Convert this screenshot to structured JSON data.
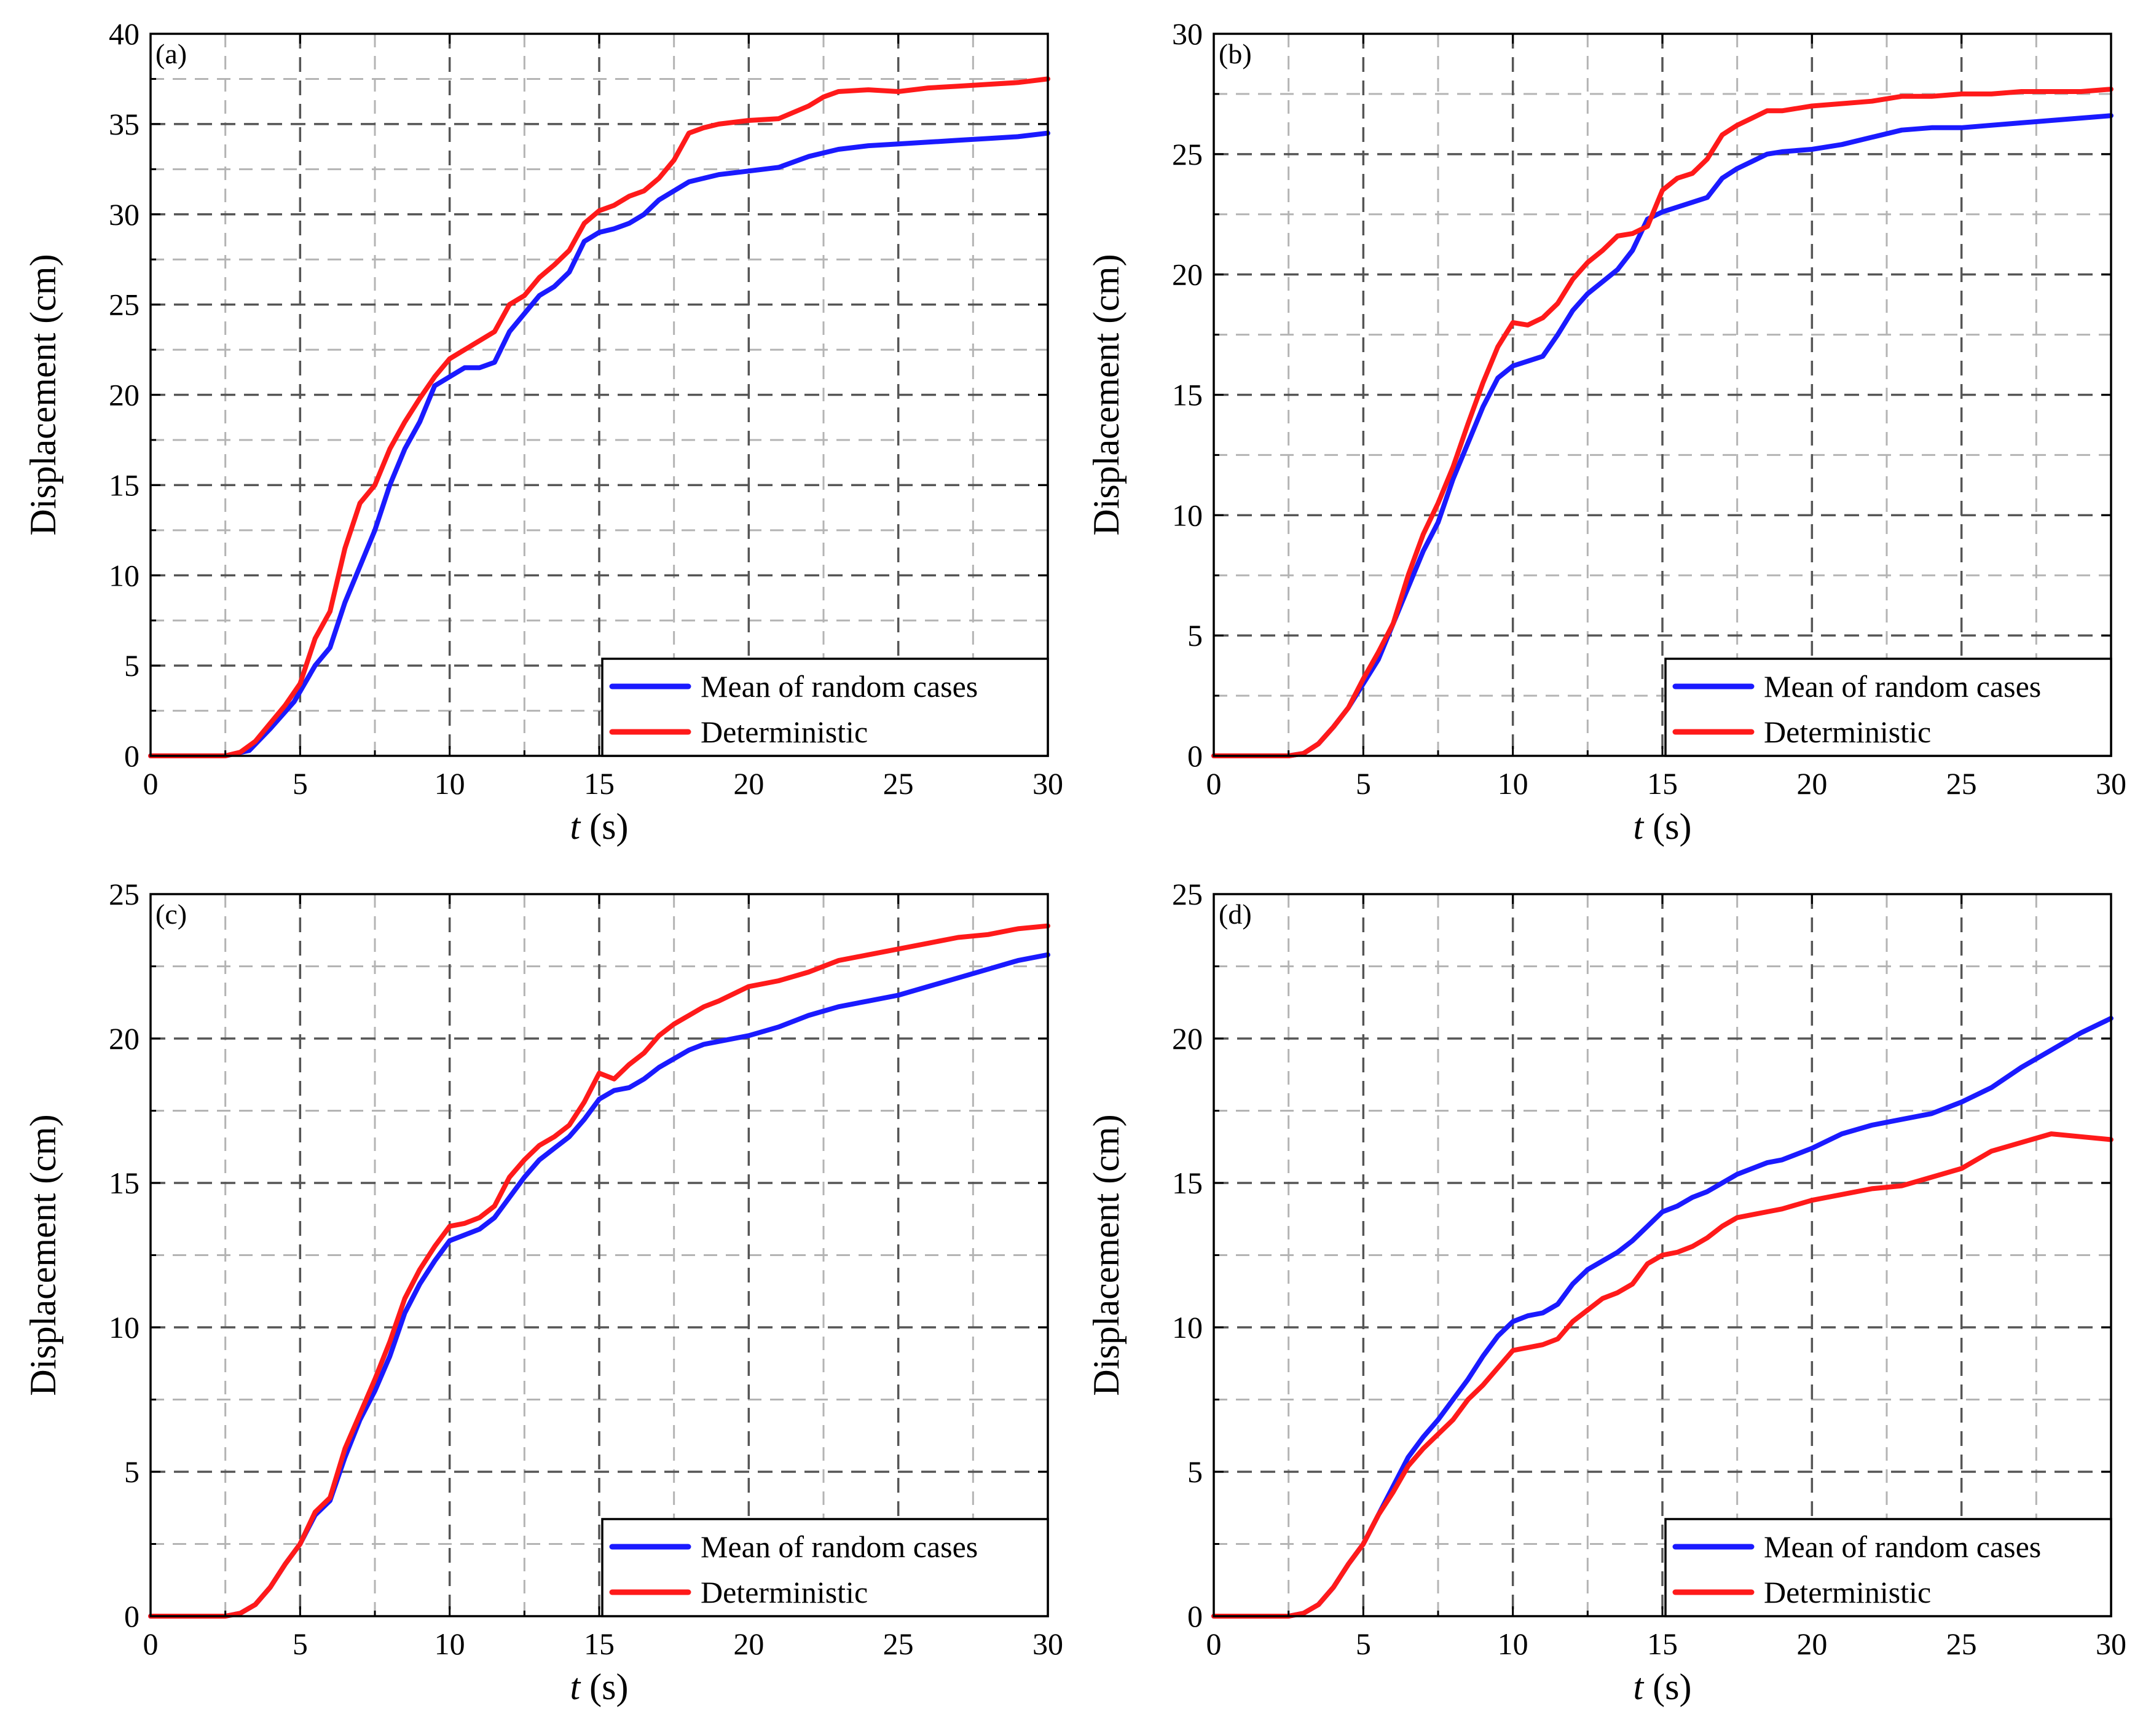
{
  "figure": {
    "y_axis_label": "Displacement (cm)",
    "x_axis_label_var": "t",
    "x_axis_label_unit": " (s)",
    "legend": [
      "Mean of random cases",
      "Deterministic"
    ],
    "colors": {
      "mean": "#1a1aff",
      "deterministic": "#ff1a1a",
      "major_grid": "#555555",
      "minor_grid": "#b4b4b4"
    }
  },
  "chart_data": [
    {
      "type": "line",
      "panel": "(a)",
      "xlabel": "t (s)",
      "ylabel": "Displacement (cm)",
      "xlim": [
        0,
        30
      ],
      "ylim": [
        0,
        40
      ],
      "xticks": [
        0,
        5,
        10,
        15,
        20,
        25,
        30
      ],
      "yticks": [
        0,
        5,
        10,
        15,
        20,
        25,
        30,
        35,
        40
      ],
      "legend_position": "bottom-right",
      "series": [
        {
          "name": "Mean of random cases",
          "x": [
            0,
            2.5,
            3.3,
            4,
            4.8,
            5.5,
            6,
            6.5,
            7,
            7.5,
            8,
            8.5,
            9,
            9.5,
            10,
            10.5,
            11,
            11.5,
            12,
            12.5,
            13,
            13.5,
            14,
            14.5,
            15,
            15.5,
            16,
            16.5,
            17,
            17.5,
            18,
            18.5,
            19,
            20,
            21,
            22,
            23,
            24,
            25,
            26,
            27,
            28,
            29,
            30
          ],
          "y": [
            0,
            0,
            0.3,
            1.5,
            3,
            5,
            6,
            8.5,
            10.5,
            12.5,
            15,
            17,
            18.5,
            20.5,
            21,
            21.5,
            21.5,
            21.8,
            23.5,
            24.5,
            25.5,
            26,
            26.8,
            28.5,
            29,
            29.2,
            29.5,
            30,
            30.8,
            31.3,
            31.8,
            32,
            32.2,
            32.4,
            32.6,
            33.2,
            33.6,
            33.8,
            33.9,
            34,
            34.1,
            34.2,
            34.3,
            34.5
          ]
        },
        {
          "name": "Deterministic",
          "x": [
            0,
            2.5,
            3,
            3.5,
            4,
            4.5,
            5,
            5.5,
            6,
            6.5,
            7,
            7.5,
            8,
            8.5,
            9,
            9.5,
            10,
            10.5,
            11,
            11.5,
            12,
            12.5,
            13,
            13.5,
            14,
            14.5,
            15,
            15.5,
            16,
            16.5,
            17,
            17.5,
            18,
            18.5,
            19,
            20,
            21,
            22,
            22.5,
            23,
            24,
            25,
            26,
            27,
            28,
            29,
            30
          ],
          "y": [
            0,
            0,
            0.2,
            0.8,
            1.8,
            2.8,
            4,
            6.5,
            8,
            11.5,
            14,
            15,
            17,
            18.5,
            19.8,
            21,
            22,
            22.5,
            23,
            23.5,
            25,
            25.5,
            26.5,
            27.2,
            28,
            29.5,
            30.2,
            30.5,
            31,
            31.3,
            32,
            33,
            34.5,
            34.8,
            35,
            35.2,
            35.3,
            36,
            36.5,
            36.8,
            36.9,
            36.8,
            37,
            37.1,
            37.2,
            37.3,
            37.5
          ]
        }
      ]
    },
    {
      "type": "line",
      "panel": "(b)",
      "xlabel": "t (s)",
      "ylabel": "Displacement (cm)",
      "xlim": [
        0,
        30
      ],
      "ylim": [
        0,
        30
      ],
      "xticks": [
        0,
        5,
        10,
        15,
        20,
        25,
        30
      ],
      "yticks": [
        0,
        5,
        10,
        15,
        20,
        25,
        30
      ],
      "legend_position": "bottom-right",
      "series": [
        {
          "name": "Mean of random cases",
          "x": [
            0,
            2.5,
            3,
            3.5,
            4,
            4.5,
            5,
            5.5,
            6,
            6.5,
            7,
            7.5,
            8,
            8.5,
            9,
            9.5,
            10,
            10.5,
            11,
            11.5,
            12,
            12.5,
            13,
            13.5,
            14,
            14.5,
            15,
            15.5,
            16,
            16.5,
            17,
            17.5,
            18,
            18.5,
            19,
            20,
            21,
            22,
            23,
            24,
            25,
            26,
            27,
            28,
            29,
            30
          ],
          "y": [
            0,
            0,
            0.1,
            0.5,
            1.2,
            2.0,
            3.0,
            4.0,
            5.5,
            7.0,
            8.5,
            9.7,
            11.5,
            13,
            14.5,
            15.7,
            16.2,
            16.4,
            16.6,
            17.5,
            18.5,
            19.2,
            19.7,
            20.2,
            21,
            22.3,
            22.6,
            22.8,
            23,
            23.2,
            24,
            24.4,
            24.7,
            25,
            25.1,
            25.2,
            25.4,
            25.7,
            26,
            26.1,
            26.1,
            26.2,
            26.3,
            26.4,
            26.5,
            26.6
          ]
        },
        {
          "name": "Deterministic",
          "x": [
            0,
            2.5,
            3,
            3.5,
            4,
            4.5,
            5,
            5.5,
            6,
            6.5,
            7,
            7.5,
            8,
            8.5,
            9,
            9.5,
            10,
            10.5,
            11,
            11.5,
            12,
            12.5,
            13,
            13.5,
            14,
            14.5,
            15,
            15.5,
            16,
            16.5,
            17,
            17.5,
            18,
            18.5,
            19,
            20,
            21,
            22,
            23,
            24,
            25,
            26,
            27,
            28,
            29,
            30
          ],
          "y": [
            0,
            0,
            0.1,
            0.5,
            1.2,
            2.0,
            3.2,
            4.3,
            5.5,
            7.5,
            9.2,
            10.5,
            12,
            13.8,
            15.5,
            17,
            18,
            17.9,
            18.2,
            18.8,
            19.8,
            20.5,
            21,
            21.6,
            21.7,
            22,
            23.5,
            24,
            24.2,
            24.8,
            25.8,
            26.2,
            26.5,
            26.8,
            26.8,
            27,
            27.1,
            27.2,
            27.4,
            27.4,
            27.5,
            27.5,
            27.6,
            27.6,
            27.6,
            27.7
          ]
        }
      ]
    },
    {
      "type": "line",
      "panel": "(c)",
      "xlabel": "t (s)",
      "ylabel": "Displacement (cm)",
      "xlim": [
        0,
        30
      ],
      "ylim": [
        0,
        25
      ],
      "xticks": [
        0,
        5,
        10,
        15,
        20,
        25,
        30
      ],
      "yticks": [
        0,
        5,
        10,
        15,
        20,
        25
      ],
      "legend_position": "bottom-right",
      "series": [
        {
          "name": "Mean of random cases",
          "x": [
            0,
            2.5,
            3,
            3.5,
            4,
            4.5,
            5,
            5.5,
            6,
            6.5,
            7,
            7.5,
            8,
            8.5,
            9,
            9.5,
            10,
            10.5,
            11,
            11.5,
            12,
            12.5,
            13,
            13.5,
            14,
            14.5,
            15,
            15.5,
            16,
            16.5,
            17,
            17.5,
            18,
            18.5,
            19,
            20,
            21,
            22,
            23,
            24,
            25,
            26,
            27,
            28,
            29,
            30
          ],
          "y": [
            0,
            0,
            0.1,
            0.4,
            1.0,
            1.8,
            2.5,
            3.5,
            4.0,
            5.5,
            6.8,
            7.8,
            9,
            10.5,
            11.5,
            12.3,
            13,
            13.2,
            13.4,
            13.8,
            14.5,
            15.2,
            15.8,
            16.2,
            16.6,
            17.2,
            17.9,
            18.2,
            18.3,
            18.6,
            19.0,
            19.3,
            19.6,
            19.8,
            19.9,
            20.1,
            20.4,
            20.8,
            21.1,
            21.3,
            21.5,
            21.8,
            22.1,
            22.4,
            22.7,
            22.9
          ]
        },
        {
          "name": "Deterministic",
          "x": [
            0,
            2.5,
            3,
            3.5,
            4,
            4.5,
            5,
            5.5,
            6,
            6.5,
            7,
            7.5,
            8,
            8.5,
            9,
            9.5,
            10,
            10.5,
            11,
            11.5,
            12,
            12.5,
            13,
            13.5,
            14,
            14.5,
            15,
            15.5,
            16,
            16.5,
            17,
            17.5,
            18,
            18.5,
            19,
            20,
            21,
            22,
            23,
            24,
            25,
            26,
            27,
            28,
            29,
            30
          ],
          "y": [
            0,
            0,
            0.1,
            0.4,
            1.0,
            1.8,
            2.5,
            3.6,
            4.1,
            5.8,
            7.0,
            8.2,
            9.5,
            11,
            12,
            12.8,
            13.5,
            13.6,
            13.8,
            14.2,
            15.2,
            15.8,
            16.3,
            16.6,
            17,
            17.8,
            18.8,
            18.6,
            19.1,
            19.5,
            20.1,
            20.5,
            20.8,
            21.1,
            21.3,
            21.8,
            22.0,
            22.3,
            22.7,
            22.9,
            23.1,
            23.3,
            23.5,
            23.6,
            23.8,
            23.9
          ]
        }
      ]
    },
    {
      "type": "line",
      "panel": "(d)",
      "xlabel": "t (s)",
      "ylabel": "Displacement (cm)",
      "xlim": [
        0,
        30
      ],
      "ylim": [
        0,
        25
      ],
      "xticks": [
        0,
        5,
        10,
        15,
        20,
        25,
        30
      ],
      "yticks": [
        0,
        5,
        10,
        15,
        20,
        25
      ],
      "legend_position": "bottom-right",
      "series": [
        {
          "name": "Mean of random cases",
          "x": [
            0,
            2.5,
            3,
            3.5,
            4,
            4.5,
            5,
            5.5,
            6,
            6.5,
            7,
            7.5,
            8,
            8.5,
            9,
            9.5,
            10,
            10.5,
            11,
            11.5,
            12,
            12.5,
            13,
            13.5,
            14,
            14.5,
            15,
            15.5,
            16,
            16.5,
            17,
            17.5,
            18,
            18.5,
            19,
            20,
            21,
            22,
            23,
            24,
            25,
            26,
            27,
            28,
            29,
            30
          ],
          "y": [
            0,
            0,
            0.1,
            0.4,
            1.0,
            1.8,
            2.5,
            3.5,
            4.5,
            5.5,
            6.2,
            6.8,
            7.5,
            8.2,
            9,
            9.7,
            10.2,
            10.4,
            10.5,
            10.8,
            11.5,
            12,
            12.3,
            12.6,
            13,
            13.5,
            14,
            14.2,
            14.5,
            14.7,
            15.0,
            15.3,
            15.5,
            15.7,
            15.8,
            16.2,
            16.7,
            17.0,
            17.2,
            17.4,
            17.8,
            18.3,
            19.0,
            19.6,
            20.2,
            20.7
          ]
        },
        {
          "name": "Deterministic",
          "x": [
            0,
            2.5,
            3,
            3.5,
            4,
            4.5,
            5,
            5.5,
            6,
            6.5,
            7,
            7.5,
            8,
            8.5,
            9,
            9.5,
            10,
            10.5,
            11,
            11.5,
            12,
            12.5,
            13,
            13.5,
            14,
            14.5,
            15,
            15.5,
            16,
            16.5,
            17,
            17.5,
            18,
            18.5,
            19,
            20,
            21,
            22,
            23,
            24,
            25,
            26,
            27,
            28,
            29,
            30
          ],
          "y": [
            0,
            0,
            0.1,
            0.4,
            1.0,
            1.8,
            2.5,
            3.5,
            4.3,
            5.2,
            5.8,
            6.3,
            6.8,
            7.5,
            8,
            8.6,
            9.2,
            9.3,
            9.4,
            9.6,
            10.2,
            10.6,
            11,
            11.2,
            11.5,
            12.2,
            12.5,
            12.6,
            12.8,
            13.1,
            13.5,
            13.8,
            13.9,
            14.0,
            14.1,
            14.4,
            14.6,
            14.8,
            14.9,
            15.2,
            15.5,
            16.1,
            16.4,
            16.7,
            16.6,
            16.5
          ]
        }
      ]
    }
  ]
}
